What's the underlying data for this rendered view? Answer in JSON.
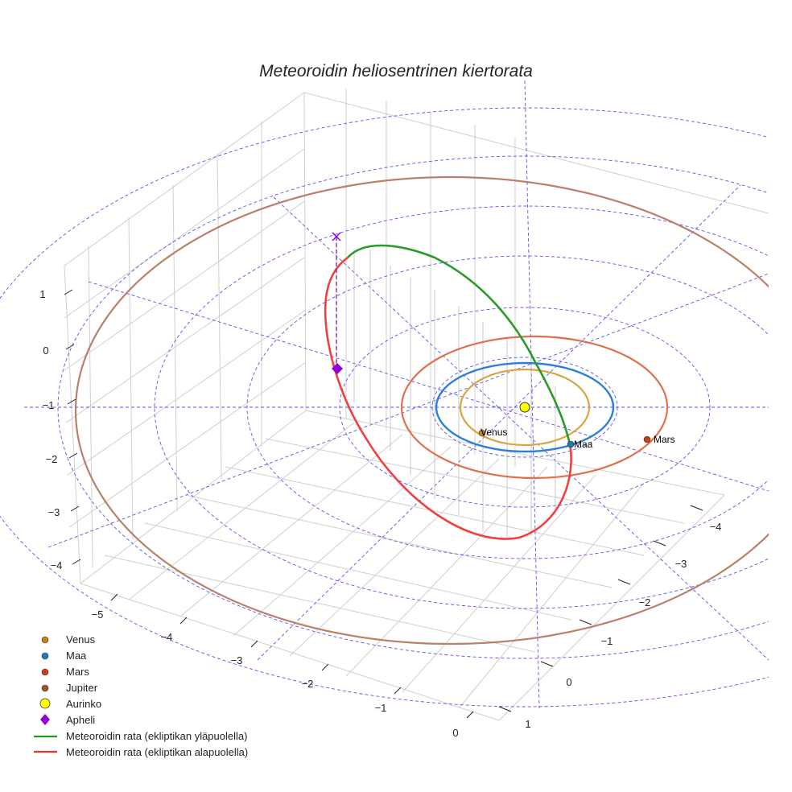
{
  "chart_data": {
    "type": "3d-orbit",
    "title": "Meteoroidin heliosentrinen kiertorata",
    "x_ticks": [
      "−5",
      "−4",
      "−3",
      "−2",
      "−1",
      "0"
    ],
    "y_ticks": [
      "1",
      "0",
      "−1",
      "−2",
      "−3",
      "−4"
    ],
    "z_ticks": [
      "1",
      "0",
      "−1",
      "−2",
      "−3",
      "−4"
    ],
    "planets": [
      {
        "name": "Venus",
        "label": "Venus",
        "orbit_au": 0.72,
        "color": "#d9a441",
        "marker": "#c8801a"
      },
      {
        "name": "Maa",
        "label": "Maa",
        "orbit_au": 1.0,
        "color": "#2f7fd8",
        "marker": "#1f77b4"
      },
      {
        "name": "Mars",
        "label": "Mars",
        "orbit_au": 1.52,
        "color": "#e0704a",
        "marker": "#c8401a"
      },
      {
        "name": "Jupiter",
        "label": "",
        "orbit_au": 5.2,
        "color": "#b9806a",
        "marker": "#a0522d"
      }
    ],
    "sun": {
      "name": "Aurinko",
      "color": "#ffff00"
    },
    "aphelion": {
      "name": "Apheli",
      "color": "#9400d3"
    },
    "legend": [
      {
        "label": "Venus",
        "kind": "dot",
        "color": "#c8801a"
      },
      {
        "label": "Maa",
        "kind": "dot",
        "color": "#1f77b4"
      },
      {
        "label": "Mars",
        "kind": "dot",
        "color": "#c8401a"
      },
      {
        "label": "Jupiter",
        "kind": "dot",
        "color": "#a0522d"
      },
      {
        "label": "Aurinko",
        "kind": "sun",
        "color": "#ffff00"
      },
      {
        "label": "Apheli",
        "kind": "diamond",
        "color": "#9400d3"
      },
      {
        "label": "Meteoroidin rata (ekliptikan yläpuolella)",
        "kind": "line",
        "color": "#1f9a1f"
      },
      {
        "label": "Meteoroidin rata (ekliptikan alapuolella)",
        "kind": "line",
        "color": "#f03030"
      }
    ],
    "legend_position": "bottom-left"
  }
}
